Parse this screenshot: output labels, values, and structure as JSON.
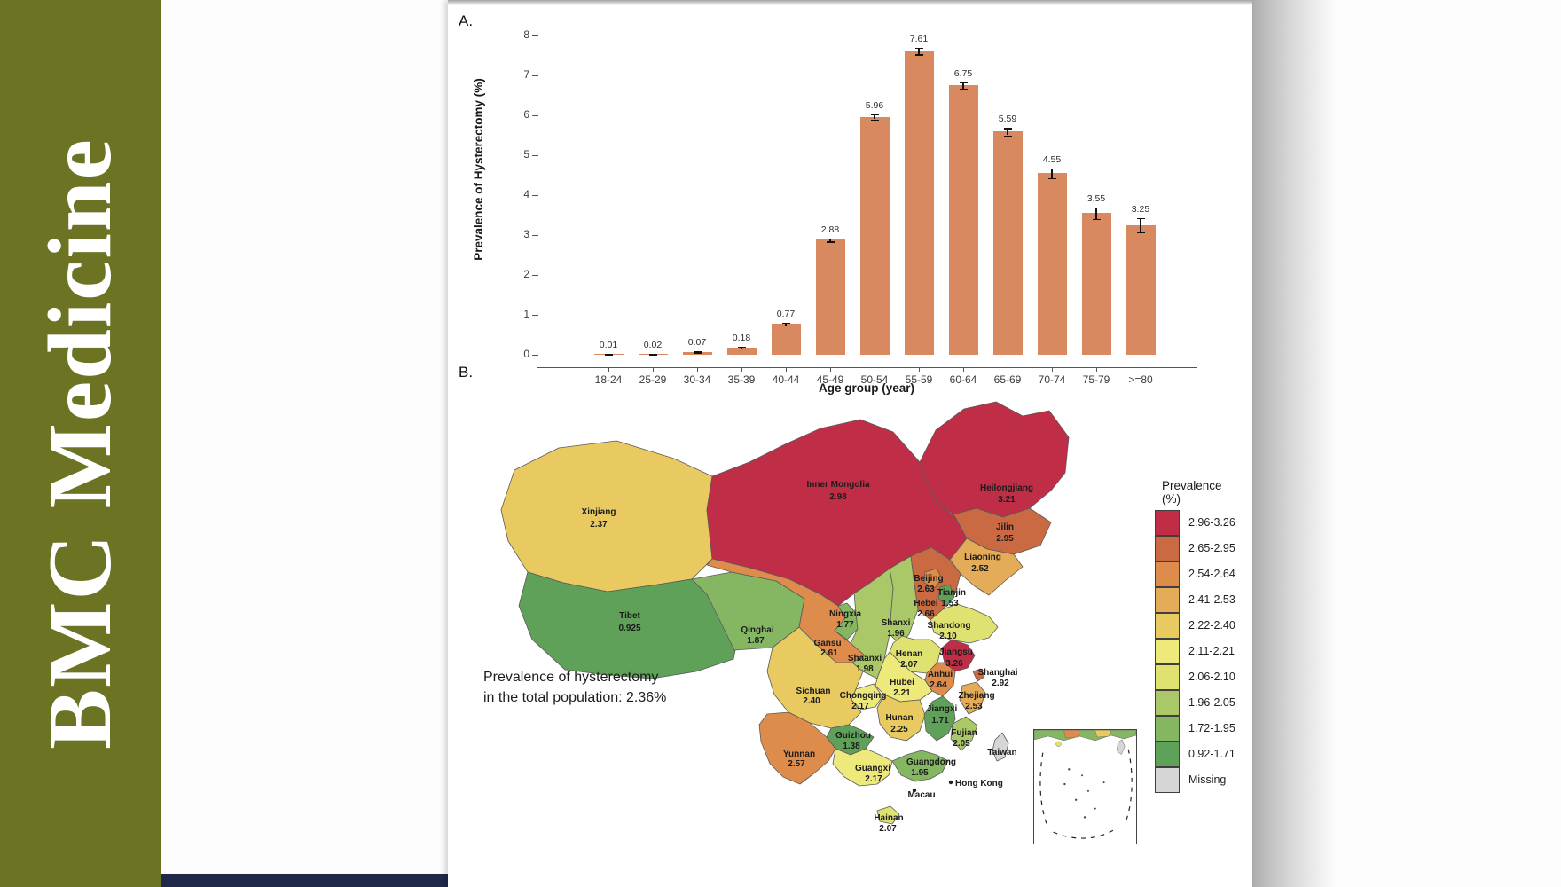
{
  "banner": {
    "journal_title": "BMC Medicine",
    "bg_color": "#6c7423",
    "footer_bar_color": "#20294a"
  },
  "page": {
    "panel_a_label": "A.",
    "panel_b_label": "B."
  },
  "chart_data": [
    {
      "type": "bar",
      "title": "",
      "xlabel": "Age group (year)",
      "ylabel": "Prevalence of Hysterectomy (%)",
      "ylim": [
        0,
        8
      ],
      "yticks": [
        0,
        1,
        2,
        3,
        4,
        5,
        6,
        7,
        8
      ],
      "grid": false,
      "bar_color": "#d9895f",
      "categories": [
        "18-24",
        "25-29",
        "30-34",
        "35-39",
        "40-44",
        "45-49",
        "50-54",
        "55-59",
        "60-64",
        "65-69",
        "70-74",
        "75-79",
        ">=80"
      ],
      "values": [
        0.01,
        0.02,
        0.07,
        0.18,
        0.77,
        2.88,
        5.96,
        7.61,
        6.75,
        5.59,
        4.55,
        3.55,
        3.25
      ],
      "value_labels": [
        "0.01",
        "0.02",
        "0.07",
        "0.18",
        "0.77",
        "2.88",
        "5.96",
        "7.61",
        "6.75",
        "5.59",
        "4.55",
        "3.55",
        "3.25"
      ],
      "errors": [
        0.004,
        0.006,
        0.01,
        0.02,
        0.03,
        0.04,
        0.06,
        0.08,
        0.08,
        0.09,
        0.12,
        0.14,
        0.17
      ]
    },
    {
      "type": "choropleth",
      "region": "China provinces",
      "legend_title": "Prevalence (%)",
      "legend": [
        {
          "label": "2.96-3.26",
          "color": "#bf2e46"
        },
        {
          "label": "2.65-2.95",
          "color": "#ca6a42"
        },
        {
          "label": "2.54-2.64",
          "color": "#dd8c4c"
        },
        {
          "label": "2.41-2.53",
          "color": "#e4ab58"
        },
        {
          "label": "2.22-2.40",
          "color": "#e8ca61"
        },
        {
          "label": "2.11-2.21",
          "color": "#ede97b"
        },
        {
          "label": "2.06-2.10",
          "color": "#dfe271"
        },
        {
          "label": "1.96-2.05",
          "color": "#aac868"
        },
        {
          "label": "1.72-1.95",
          "color": "#85b763"
        },
        {
          "label": "0.92-1.71",
          "color": "#5fa158"
        },
        {
          "label": "Missing",
          "color": "#d6d6d6"
        }
      ],
      "note_line1": "Prevalence of hysterectomy",
      "note_line2": "in the total population: 2.36%",
      "provinces": [
        {
          "name": "Xinjiang",
          "value": "2.37",
          "color": "#e8ca61"
        },
        {
          "name": "Tibet",
          "value": "0.925",
          "color": "#5fa158"
        },
        {
          "name": "Inner Mongolia",
          "value": "2.98",
          "color": "#bf2e46"
        },
        {
          "name": "Qinghai",
          "value": "1.87",
          "color": "#85b763"
        },
        {
          "name": "Gansu",
          "value": "2.61",
          "color": "#dd8c4c"
        },
        {
          "name": "Sichuan",
          "value": "2.40",
          "color": "#e8ca61"
        },
        {
          "name": "Yunnan",
          "value": "2.57",
          "color": "#dd8c4c"
        },
        {
          "name": "Heilongjiang",
          "value": "3.21",
          "color": "#bf2e46"
        },
        {
          "name": "Jilin",
          "value": "2.95",
          "color": "#ca6a42"
        },
        {
          "name": "Liaoning",
          "value": "2.52",
          "color": "#e4ab58"
        },
        {
          "name": "Ningxia",
          "value": "1.77",
          "color": "#85b763"
        },
        {
          "name": "Shaanxi",
          "value": "1.98",
          "color": "#aac868"
        },
        {
          "name": "Shanxi",
          "value": "1.96",
          "color": "#aac868"
        },
        {
          "name": "Hebei",
          "value": "2.66",
          "color": "#ca6a42"
        },
        {
          "name": "Shandong",
          "value": "2.10",
          "color": "#dfe271"
        },
        {
          "name": "Henan",
          "value": "2.07",
          "color": "#dfe271"
        },
        {
          "name": "Hubei",
          "value": "2.21",
          "color": "#ede97b"
        },
        {
          "name": "Chongqing",
          "value": "2.17",
          "color": "#ede97b"
        },
        {
          "name": "Guizhou",
          "value": "1.38",
          "color": "#5fa158"
        },
        {
          "name": "Guangxi",
          "value": "2.17",
          "color": "#ede97b"
        },
        {
          "name": "Guangdong",
          "value": "1.95",
          "color": "#85b763"
        },
        {
          "name": "Hunan",
          "value": "2.25",
          "color": "#e8ca61"
        },
        {
          "name": "Jiangxi",
          "value": "1.71",
          "color": "#5fa158"
        },
        {
          "name": "Anhui",
          "value": "2.64",
          "color": "#dd8c4c"
        },
        {
          "name": "Jiangsu",
          "value": "3.26",
          "color": "#bf2e46"
        },
        {
          "name": "Zhejiang",
          "value": "2.53",
          "color": "#e4ab58"
        },
        {
          "name": "Fujian",
          "value": "2.05",
          "color": "#aac868"
        },
        {
          "name": "Hainan",
          "value": "2.07",
          "color": "#dfe271"
        },
        {
          "name": "Taiwan",
          "value": "",
          "color": "#d6d6d6"
        },
        {
          "name": "Beijing",
          "value": "2.63",
          "color": "#dd8c4c"
        },
        {
          "name": "Tianjin",
          "value": "1.53",
          "color": "#5fa158"
        },
        {
          "name": "Shanghai",
          "value": "2.92",
          "color": "#ca6a42"
        },
        {
          "name": "Hong Kong",
          "value": "",
          "color": ""
        },
        {
          "name": "Macau",
          "value": "",
          "color": ""
        }
      ]
    }
  ]
}
